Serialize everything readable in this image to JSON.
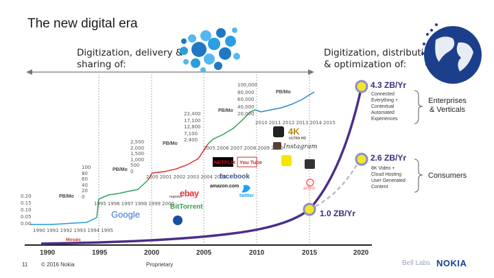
{
  "slide": {
    "title": "The new digital era",
    "phrase_left": [
      "Digitization, delivery &",
      "sharing of:"
    ],
    "phrase_right": [
      "Digitization, distribution",
      "& optimization of:"
    ]
  },
  "timeline": {
    "years": [
      "1990",
      "1995",
      "2000",
      "2005",
      "2010",
      "2015",
      "2020"
    ]
  },
  "zettabytes": {
    "top": "4.3 ZB/Yr",
    "mid": "2.6 ZB/Yr",
    "low": "1.0 ZB/Yr",
    "top_items": [
      "Connected",
      "Everything +",
      "Contextual",
      "Automated",
      "Experiences"
    ],
    "mid_items": [
      "8K Video +",
      "Cloud Hosting",
      "User Generated",
      "Content"
    ],
    "enterprises": [
      "Enterprises",
      "& Verticals"
    ],
    "consumers": "Consumers"
  },
  "mini_charts": [
    {
      "unit": "PB/Mo",
      "yticks": [
        "0.20",
        "0.15",
        "0.10",
        "0.05",
        "0.00"
      ],
      "xticks": [
        "1990",
        "1991",
        "1992",
        "1993",
        "1994",
        "1995"
      ]
    },
    {
      "unit": "PB/Mo",
      "yticks": [
        "100",
        "80",
        "60",
        "40",
        "20",
        "0"
      ],
      "xticks": [
        "1995",
        "1996",
        "1997",
        "1998",
        "1999",
        "2000"
      ]
    },
    {
      "unit": "PB/Mo",
      "yticks": [
        "2,500",
        "2,000",
        "1,500",
        "1,000",
        "500",
        "0"
      ],
      "xticks": [
        "2000",
        "2001",
        "2002",
        "2003",
        "2004",
        "2005"
      ]
    },
    {
      "unit": "PB/Mo",
      "yticks": [
        "22,400",
        "17,100",
        "12,800",
        "7,100",
        "2,400"
      ],
      "xticks": [
        "2005",
        "2006",
        "2007",
        "2008",
        "2009",
        "2010"
      ]
    },
    {
      "unit": "PB/Mo",
      "yticks": [
        "100,000",
        "80,000",
        "60,000",
        "40,000",
        "20,000"
      ],
      "xticks": [
        "2010",
        "2011",
        "2012",
        "2013",
        "2014",
        "2015"
      ]
    }
  ],
  "logos": {
    "mosaic": "Mosaic",
    "google": "Google",
    "ebay": "ebay",
    "napster": "napster",
    "bittorrent": "BitTorrent",
    "netflix": "NETFLIX",
    "youtube": "You Tube",
    "facebook": "facebook",
    "amazon": "amazon.com",
    "twitter": "twitter",
    "instagram": "Instagram",
    "ultrahd": "4K",
    "ultrahd_sub": "ULTRA HD",
    "airbnb": "airbnb"
  },
  "footer": {
    "page": "11",
    "copyright": "© 2016 Nokia",
    "label": "Proprietary",
    "bell": "Bell Labs",
    "brand": "NOKIA"
  },
  "colors": {
    "curve": "#4b2e8a",
    "mini1": "#1f9ad6",
    "mini2": "#27a35a",
    "mini3": "#d9342b",
    "mini4": "#2ea24a",
    "mini5": "#2a86c9",
    "zb_node": "#f3e62a",
    "dashed": "#bdbdbd",
    "brand": "#124191"
  }
}
